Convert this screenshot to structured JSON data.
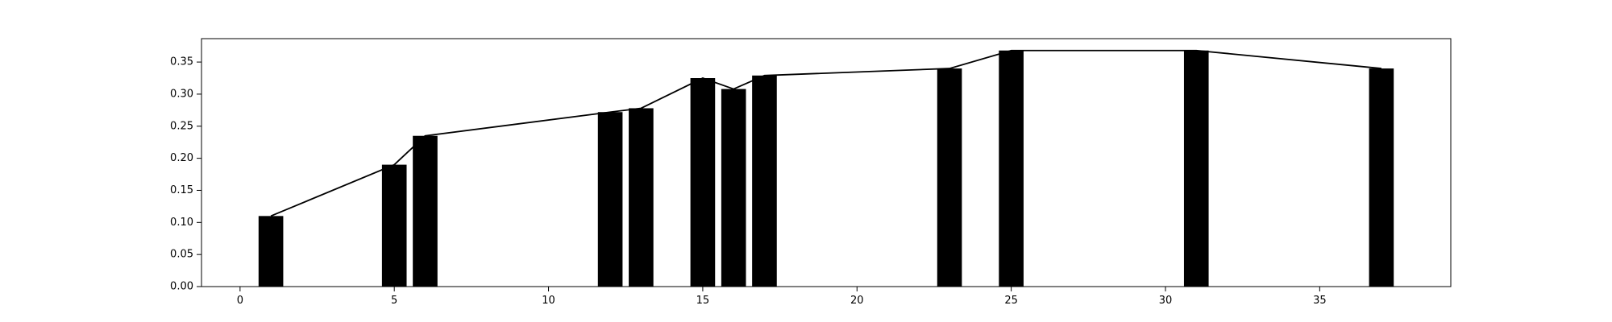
{
  "chart_data": {
    "type": "bar",
    "title": "",
    "xlabel": "",
    "ylabel": "",
    "xlim": [
      -1.25,
      39.25
    ],
    "ylim": [
      0,
      0.3865
    ],
    "grid": false,
    "legend": "none",
    "bar_color": "#000000",
    "line_color": "#000000",
    "bar_width": 0.8,
    "x_ticks": [
      {
        "value": 0,
        "label": "0"
      },
      {
        "value": 5,
        "label": "5"
      },
      {
        "value": 10,
        "label": "10"
      },
      {
        "value": 15,
        "label": "15"
      },
      {
        "value": 20,
        "label": "20"
      },
      {
        "value": 25,
        "label": "25"
      },
      {
        "value": 30,
        "label": "30"
      },
      {
        "value": 35,
        "label": "35"
      }
    ],
    "y_ticks": [
      {
        "value": 0.0,
        "label": "0.00"
      },
      {
        "value": 0.05,
        "label": "0.05"
      },
      {
        "value": 0.1,
        "label": "0.10"
      },
      {
        "value": 0.15,
        "label": "0.15"
      },
      {
        "value": 0.2,
        "label": "0.20"
      },
      {
        "value": 0.25,
        "label": "0.25"
      },
      {
        "value": 0.3,
        "label": "0.30"
      },
      {
        "value": 0.35,
        "label": "0.35"
      }
    ],
    "x": [
      1,
      5,
      6,
      12,
      13,
      15,
      16,
      17,
      23,
      25,
      31,
      37
    ],
    "values": [
      0.11,
      0.19,
      0.235,
      0.272,
      0.278,
      0.325,
      0.308,
      0.329,
      0.34,
      0.368,
      0.368,
      0.34
    ]
  }
}
